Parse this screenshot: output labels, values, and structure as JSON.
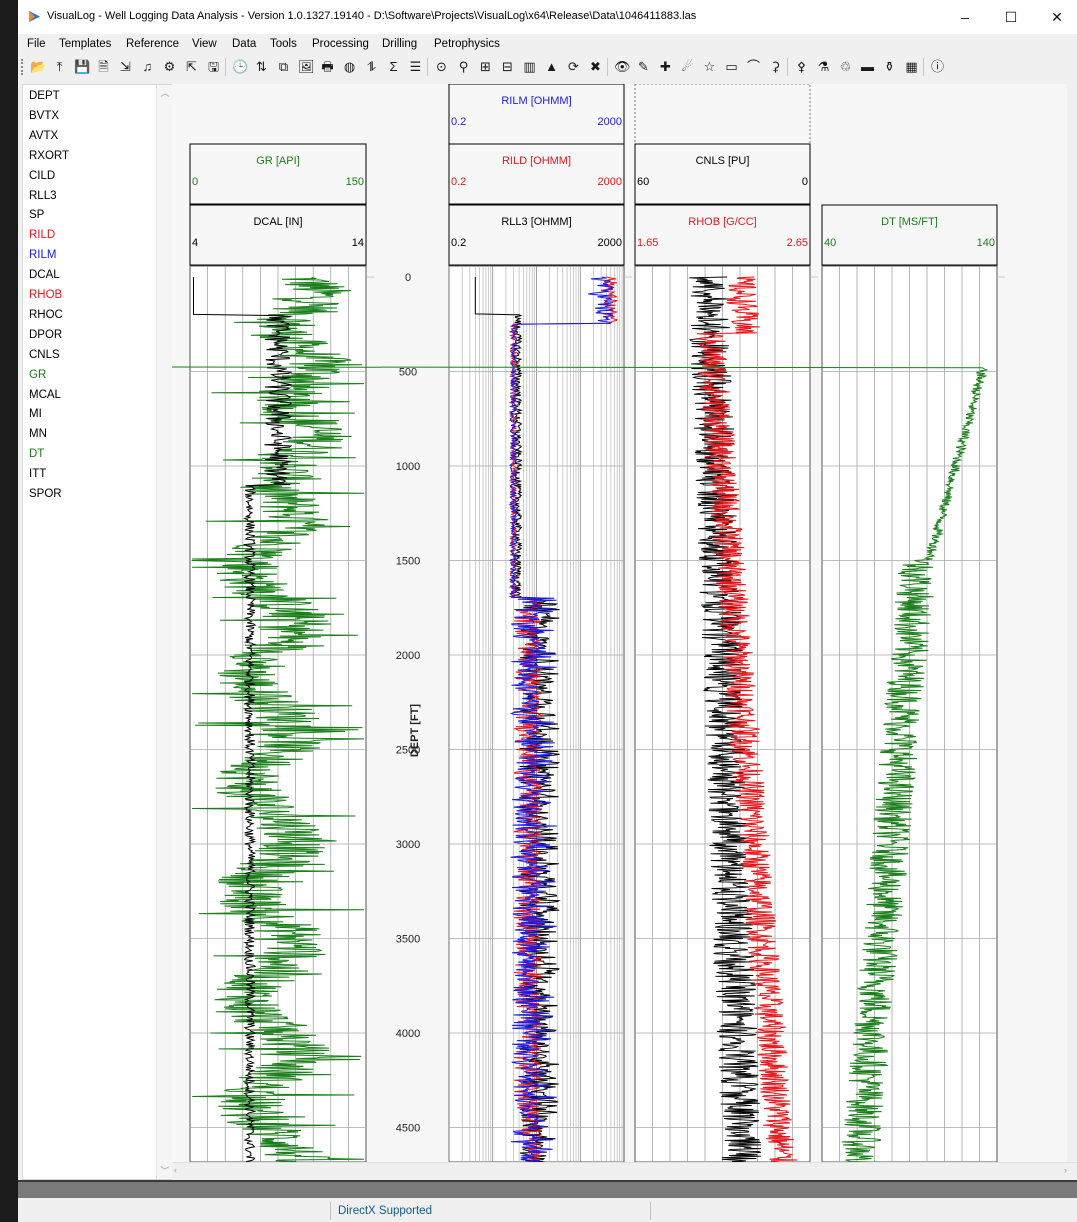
{
  "window": {
    "title": "VisualLog - Well Logging Data Analysis - Version 1.0.1327.19140 - D:\\Software\\Projects\\VisualLog\\x64\\Release\\Data\\1046411883.las",
    "minimize_label": "–",
    "maximize_label": "☐",
    "close_label": "✕"
  },
  "menu": [
    "File",
    "Templates",
    "Reference",
    "View",
    "Data",
    "Tools",
    "Processing",
    "Drilling",
    "Petrophysics"
  ],
  "toolbar_icons": [
    "open-folder-icon",
    "import-icon",
    "save-icon",
    "document-icon",
    "export-icon",
    "curve-edit-icon",
    "settings-gear-icon",
    "load-icon",
    "save-as-icon",
    "clock-icon",
    "depth-shift-icon",
    "merge-icon",
    "image-icon",
    "print-icon",
    "fill-icon",
    "normalize-icon",
    "sigma-icon",
    "report-icon",
    "filter-icon",
    "tree-icon",
    "grid-icon",
    "crossplot-icon",
    "histogram-icon",
    "triangle-icon",
    "refresh-icon",
    "delete-icon",
    "eye-icon",
    "pipette-icon",
    "add-track-icon",
    "wifi-icon",
    "star-icon",
    "ruler-icon",
    "curve-icon",
    "hierarchy-icon",
    "network-icon",
    "chemistry-icon",
    "recycle-icon",
    "layers-icon",
    "flask-icon",
    "columns-icon",
    "info-icon"
  ],
  "curves": [
    {
      "name": "DEPT",
      "color": "#000000"
    },
    {
      "name": "BVTX",
      "color": "#000000"
    },
    {
      "name": "AVTX",
      "color": "#000000"
    },
    {
      "name": "RXORT",
      "color": "#000000"
    },
    {
      "name": "CILD",
      "color": "#000000"
    },
    {
      "name": "RLL3",
      "color": "#000000"
    },
    {
      "name": "SP",
      "color": "#000000"
    },
    {
      "name": "RILD",
      "color": "#e8161b"
    },
    {
      "name": "RILM",
      "color": "#1a1ae6"
    },
    {
      "name": "DCAL",
      "color": "#000000"
    },
    {
      "name": "RHOB",
      "color": "#e8161b"
    },
    {
      "name": "RHOC",
      "color": "#000000"
    },
    {
      "name": "DPOR",
      "color": "#000000"
    },
    {
      "name": "CNLS",
      "color": "#000000"
    },
    {
      "name": "GR",
      "color": "#1a7f1a"
    },
    {
      "name": "MCAL",
      "color": "#000000"
    },
    {
      "name": "MI",
      "color": "#000000"
    },
    {
      "name": "MN",
      "color": "#000000"
    },
    {
      "name": "DT",
      "color": "#1a7f1a"
    },
    {
      "name": "ITT",
      "color": "#000000"
    },
    {
      "name": "SPOR",
      "color": "#000000"
    }
  ],
  "depth_axis": {
    "label": "DEPT [FT]",
    "ticks": [
      "0",
      "500",
      "1000",
      "1500",
      "2000",
      "2500",
      "3000",
      "3500",
      "4000",
      "4500"
    ]
  },
  "tracks": [
    {
      "id": "track1",
      "headers": [
        {
          "name": "GR [API]",
          "color": "#1a7f1a",
          "min": "0",
          "max": "150"
        },
        {
          "name": "DCAL [IN]",
          "color": "#000000",
          "min": "4",
          "max": "14"
        }
      ]
    },
    {
      "id": "track2",
      "headers": [
        {
          "name": "RILM [OHMM]",
          "color": "#1a1ae6",
          "min": "0.2",
          "max": "2000"
        },
        {
          "name": "RILD [OHMM]",
          "color": "#e8161b",
          "min": "0.2",
          "max": "2000"
        },
        {
          "name": "RLL3 [OHMM]",
          "color": "#000000",
          "min": "0.2",
          "max": "2000"
        }
      ]
    },
    {
      "id": "track3",
      "headers": [
        {
          "name": "CNLS [PU]",
          "color": "#000000",
          "min": "60",
          "max": "0"
        },
        {
          "name": "RHOB [G/CC]",
          "color": "#e8161b",
          "min": "1.65",
          "max": "2.65"
        }
      ]
    },
    {
      "id": "track4",
      "headers": [
        {
          "name": "DT [MS/FT]",
          "color": "#1a7f1a",
          "min": "40",
          "max": "140"
        }
      ]
    }
  ],
  "status": {
    "text": "DirectX Supported"
  }
}
